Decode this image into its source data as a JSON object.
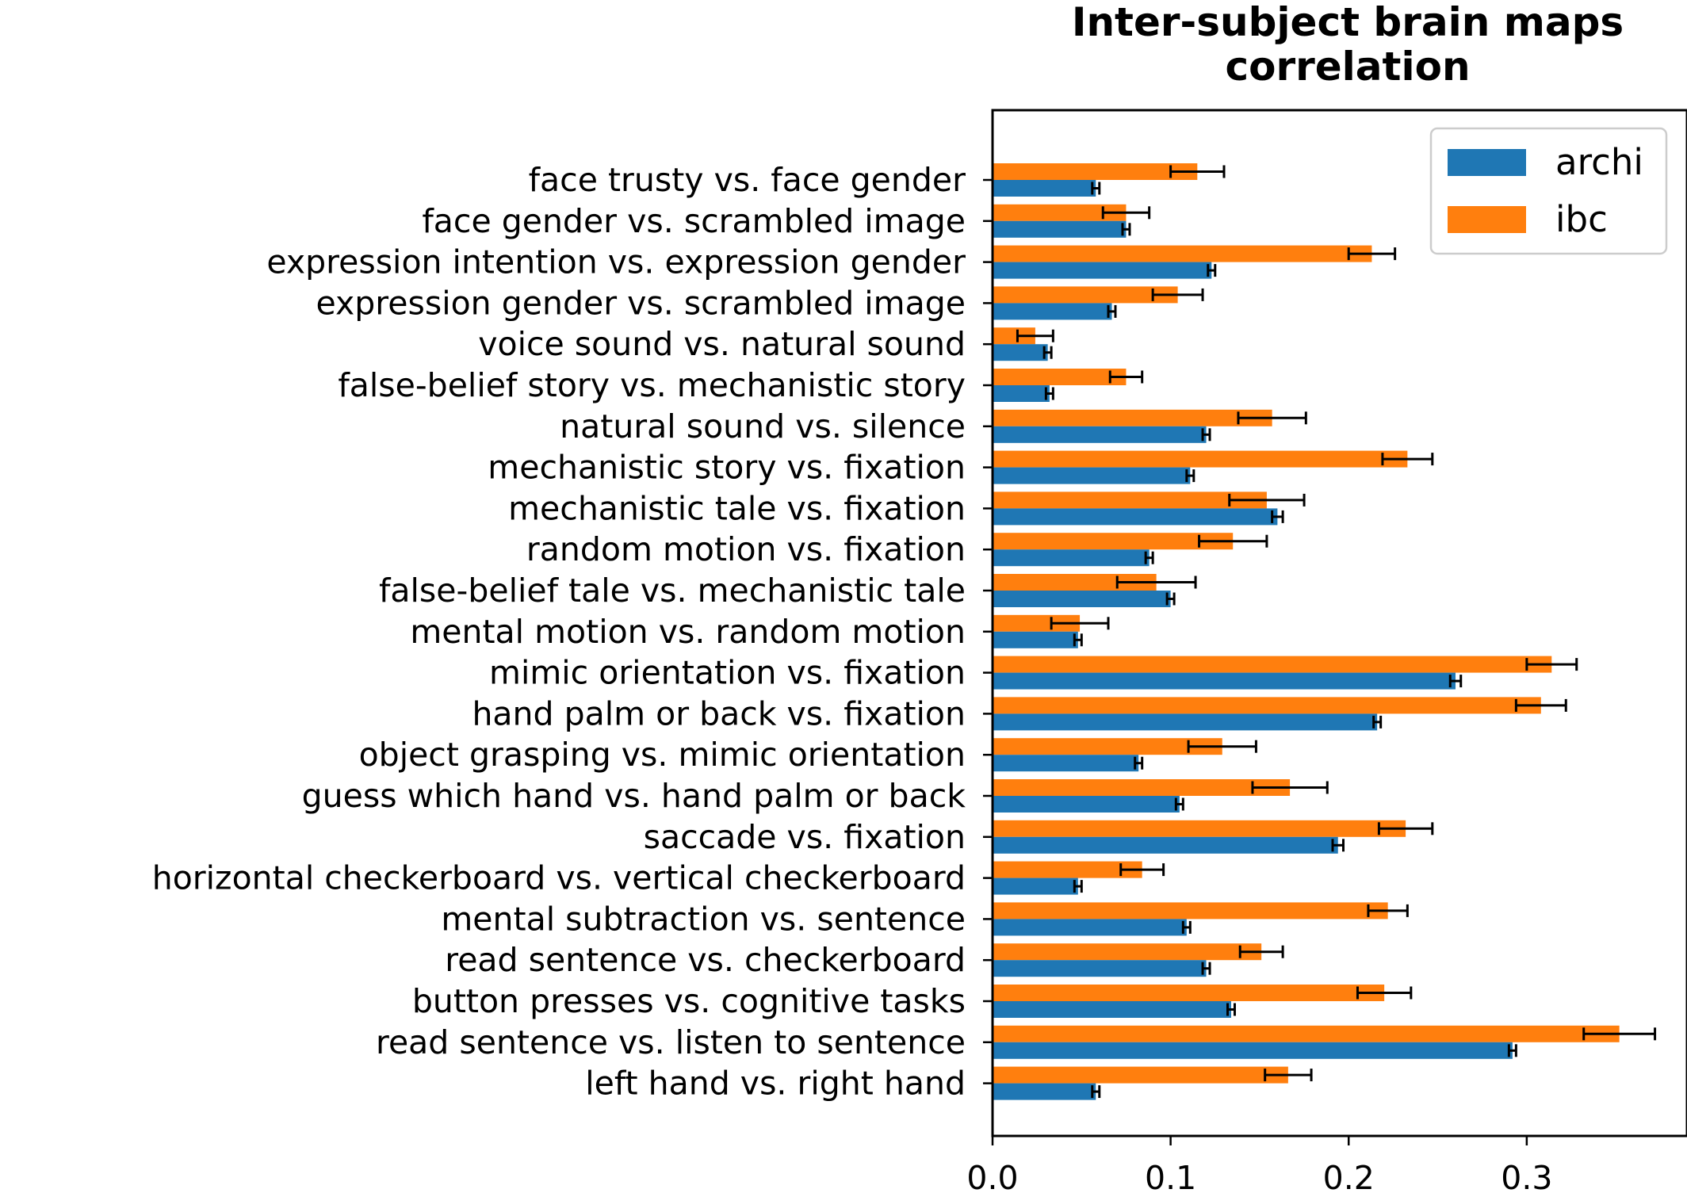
{
  "chart_data": {
    "type": "bar",
    "orientation": "horizontal",
    "title": "Inter-subject brain maps\ncorrelation",
    "xlabel": "",
    "ylabel": "",
    "xlim": [
      0,
      0.39
    ],
    "xticks": [
      "0.0",
      "0.1",
      "0.2",
      "0.3"
    ],
    "grid": false,
    "legend_position": "top-right",
    "categories": [
      "face trusty vs. face gender",
      "face gender vs. scrambled image",
      "expression intention vs. expression gender",
      "expression gender vs. scrambled image",
      "voice sound vs. natural sound",
      "false-belief story vs. mechanistic story",
      "natural sound vs. silence",
      "mechanistic story vs. fixation",
      "mechanistic tale vs. fixation",
      "random motion vs. fixation",
      "false-belief tale vs. mechanistic tale",
      "mental motion vs. random motion",
      "mimic orientation vs. fixation",
      "hand palm or back vs. fixation",
      "object grasping vs. mimic orientation",
      "guess which hand vs. hand palm or back",
      "saccade vs. fixation",
      "horizontal checkerboard vs. vertical checkerboard",
      "mental subtraction vs. sentence",
      "read sentence vs. checkerboard",
      "button presses vs. cognitive tasks",
      "read sentence vs. listen to sentence",
      "left hand vs. right hand"
    ],
    "series": [
      {
        "name": "archi",
        "color": "#1f77b4",
        "values": [
          0.058,
          0.075,
          0.123,
          0.067,
          0.031,
          0.032,
          0.12,
          0.111,
          0.16,
          0.088,
          0.1,
          0.048,
          0.26,
          0.216,
          0.082,
          0.105,
          0.194,
          0.048,
          0.109,
          0.12,
          0.134,
          0.292,
          0.058
        ],
        "errors": [
          0.002,
          0.002,
          0.002,
          0.002,
          0.002,
          0.002,
          0.002,
          0.002,
          0.003,
          0.002,
          0.002,
          0.002,
          0.003,
          0.002,
          0.002,
          0.002,
          0.003,
          0.002,
          0.002,
          0.002,
          0.002,
          0.002,
          0.002
        ]
      },
      {
        "name": "ibc",
        "color": "#ff7f0e",
        "values": [
          0.115,
          0.075,
          0.213,
          0.104,
          0.024,
          0.075,
          0.157,
          0.233,
          0.154,
          0.135,
          0.092,
          0.049,
          0.314,
          0.308,
          0.129,
          0.167,
          0.232,
          0.084,
          0.222,
          0.151,
          0.22,
          0.352,
          0.166
        ]
      }
    ],
    "ibc_errors": [
      0.015,
      0.013,
      0.013,
      0.014,
      0.01,
      0.009,
      0.019,
      0.014,
      0.021,
      0.019,
      0.022,
      0.016,
      0.014,
      0.014,
      0.019,
      0.021,
      0.015,
      0.012,
      0.011,
      0.012,
      0.015,
      0.02,
      0.013
    ]
  }
}
